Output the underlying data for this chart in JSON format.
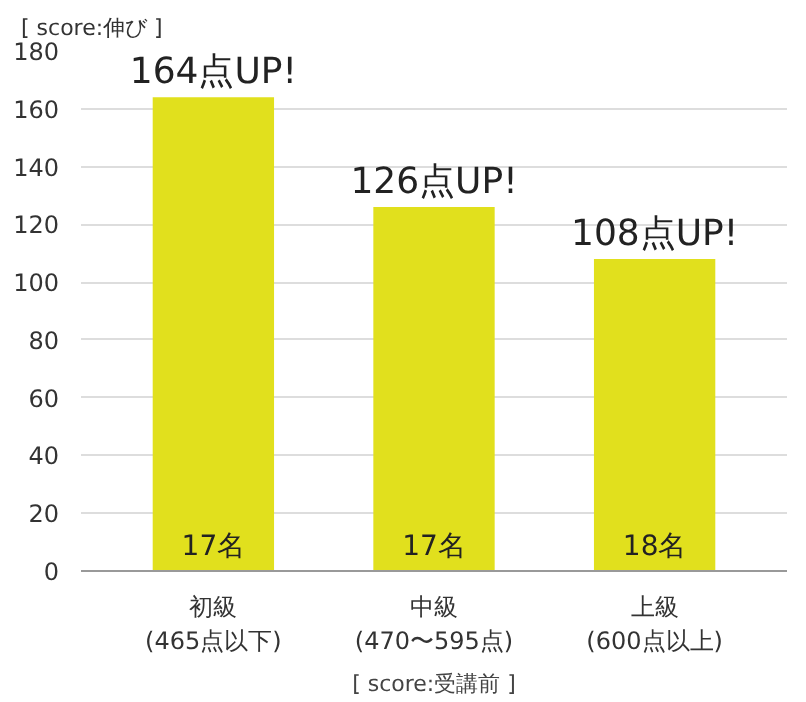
{
  "chart_data": {
    "type": "bar",
    "ylabel": "[ score:伸び ]",
    "xlabel": "[ score:受講前 ]",
    "categories": [
      "初級\n(465点以下)",
      "中級\n(470〜595点)",
      "上級\n(600点以上)"
    ],
    "values": [
      164,
      126,
      108
    ],
    "color": "#e1e01d",
    "value_labels": [
      "164点UP!",
      "126点UP!",
      "108点UP!"
    ],
    "annotations": [
      "17名",
      "17名",
      "18名"
    ],
    "ylim": [
      0,
      180
    ],
    "yticks": [
      0,
      20,
      40,
      60,
      80,
      100,
      120,
      140,
      160,
      180
    ],
    "grid": "y"
  }
}
